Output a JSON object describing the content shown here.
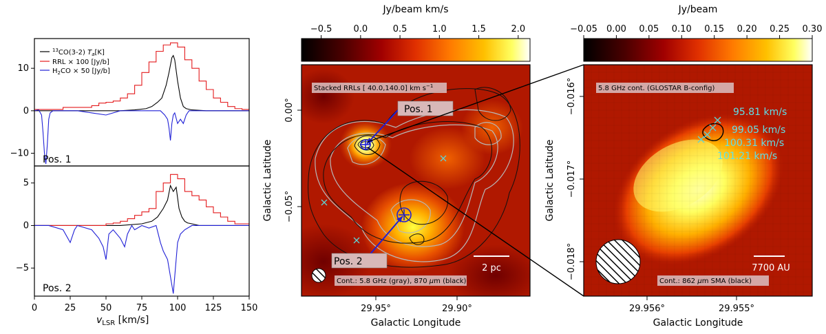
{
  "chart_data": [
    {
      "type": "line",
      "panel": "spectrum-position-1",
      "label": "Pos. 1",
      "x_range": [
        0,
        150
      ],
      "ylim": [
        -13,
        17
      ],
      "y_ticks": [
        -10,
        0,
        10
      ],
      "legend": [
        "$^{13}$CO(3-2) $T_a$[K]",
        "RRL × 100 [Jy/b]",
        "H$_2$CO × 50 [Jy/b]"
      ],
      "legend_text": {
        "co_sup": "13",
        "co_main": "CO(3-2) ",
        "co_ta": "T",
        "co_ta_sub": "a",
        "co_unit": "[K]",
        "rrl": "RRL × 100 [Jy/b]",
        "h2co_a": "H",
        "h2co_sub": "2",
        "h2co_b": "CO × 50 [Jy/b]"
      },
      "series": [
        {
          "name": "13CO(3-2) Ta",
          "color": "#000000",
          "x": [
            0,
            10,
            20,
            30,
            40,
            50,
            60,
            70,
            78,
            82,
            86,
            89,
            92,
            94,
            96,
            97,
            98,
            100,
            102,
            104,
            106,
            110,
            120,
            130,
            140,
            150
          ],
          "y": [
            0,
            0,
            0,
            0,
            0,
            0,
            0,
            0.2,
            0.5,
            1,
            2,
            3,
            6,
            9,
            12.5,
            13,
            12,
            7,
            3,
            1,
            0.5,
            0.2,
            0,
            0,
            0,
            0
          ]
        },
        {
          "name": "RRL x 100",
          "color": "#e41a1c",
          "steps": true,
          "x": [
            0,
            10,
            20,
            30,
            40,
            45,
            50,
            55,
            60,
            65,
            70,
            75,
            80,
            85,
            90,
            95,
            100,
            105,
            110,
            115,
            120,
            125,
            130,
            135,
            140,
            145,
            150
          ],
          "y": [
            0.3,
            0.3,
            0.8,
            0.8,
            1.2,
            1.8,
            2,
            2.3,
            3,
            4,
            6,
            9,
            11.5,
            14,
            15.5,
            16,
            15,
            12,
            10,
            7,
            5,
            3,
            2,
            1,
            0.5,
            0.3,
            0.2
          ]
        },
        {
          "name": "H2CO x 50",
          "color": "#1f1fd6",
          "x": [
            0,
            3,
            5,
            6,
            7,
            8,
            9,
            10,
            11,
            13,
            16,
            20,
            30,
            40,
            50,
            60,
            70,
            80,
            88,
            91,
            93,
            94,
            95,
            96,
            97,
            98,
            100,
            102,
            104,
            106,
            108,
            110,
            115,
            120,
            130,
            140,
            150
          ],
          "y": [
            0,
            0.2,
            -1,
            -5,
            -10,
            -12.5,
            -8,
            -2,
            -0.5,
            0,
            0,
            0,
            0,
            -0.5,
            -1,
            0,
            0,
            0,
            0,
            -1,
            -2,
            -4,
            -7,
            -3,
            -1,
            -0.5,
            -3,
            -2,
            -3,
            -1,
            0,
            0,
            0,
            0,
            0,
            0,
            0
          ]
        }
      ]
    },
    {
      "type": "line",
      "panel": "spectrum-position-2",
      "label": "Pos. 2",
      "x_range": [
        0,
        150
      ],
      "ylim": [
        -8.3,
        7
      ],
      "y_ticks": [
        -5,
        0,
        5
      ],
      "x_ticks": [
        0,
        25,
        50,
        75,
        100,
        125,
        150
      ],
      "xlabel_main": "v",
      "xlabel_sub": "LSR",
      "xlabel_unit": " [km/s]",
      "series": [
        {
          "name": "13CO(3-2) Ta",
          "color": "#000000",
          "x": [
            0,
            20,
            40,
            60,
            75,
            82,
            86,
            90,
            93,
            95,
            97,
            99,
            101,
            103,
            105,
            107,
            110,
            115,
            120,
            130,
            140,
            150
          ],
          "y": [
            0,
            0,
            0,
            0,
            0.2,
            0.5,
            1,
            2,
            3,
            4.7,
            4,
            4.5,
            2,
            1,
            0.5,
            0.3,
            0.2,
            0,
            0,
            0,
            0,
            0
          ]
        },
        {
          "name": "RRL x 100",
          "color": "#e41a1c",
          "steps": true,
          "x": [
            0,
            10,
            20,
            30,
            40,
            50,
            55,
            60,
            65,
            70,
            75,
            80,
            85,
            90,
            95,
            100,
            105,
            110,
            115,
            120,
            125,
            130,
            135,
            140,
            150
          ],
          "y": [
            0,
            0,
            0,
            0,
            0,
            0.2,
            0.3,
            0.5,
            0.8,
            1.2,
            1.6,
            2,
            4,
            5,
            6,
            5.5,
            4,
            3.5,
            3,
            2.2,
            1.5,
            1,
            0.5,
            0.2,
            0
          ]
        },
        {
          "name": "H2CO x 50",
          "color": "#1f1fd6",
          "x": [
            0,
            10,
            20,
            25,
            28,
            30,
            40,
            45,
            48,
            50,
            52,
            55,
            60,
            63,
            65,
            68,
            70,
            75,
            80,
            85,
            88,
            90,
            93,
            95,
            96,
            97,
            98,
            99,
            100,
            102,
            105,
            110,
            120,
            130,
            150
          ],
          "y": [
            0,
            0,
            -0.5,
            -2,
            -0.5,
            0,
            -0.5,
            -1.5,
            -2.5,
            -4,
            -1,
            -0.5,
            -1.5,
            -2.5,
            -1,
            0,
            -0.5,
            0,
            -0.3,
            0,
            -2,
            -3,
            -4,
            -6,
            -7,
            -8,
            -6,
            -4,
            -2,
            -1,
            -0.5,
            0,
            0,
            0,
            0
          ]
        }
      ]
    },
    {
      "type": "heatmap",
      "panel": "stacked-rrl-map",
      "colorbar_label": "Jy/beam km/s",
      "colorbar_ticks": [
        "−0.5",
        "0.0",
        "0.5",
        "1.0",
        "1.5",
        "2.0"
      ],
      "colorbar_range": [
        -0.75,
        2.15
      ],
      "x_ticks": [
        "29.95°",
        "29.90°"
      ],
      "y_ticks": [
        "−0.05°",
        "0.00°"
      ],
      "xlabel": "Galactic Longitude",
      "ylabel": "Galactic Latitude",
      "title_box": "Stacked RRLs [ 40.0,140.0] km s",
      "title_sup": "−1",
      "footnote_a": "Cont.: 5.8 GHz (gray), 870 ",
      "footnote_mu": "μ",
      "footnote_b": "m (black)",
      "scale_bar": "2 pc",
      "markers": [
        "Pos. 1",
        "Pos. 2"
      ]
    },
    {
      "type": "heatmap",
      "panel": "glostar-zoom-map",
      "colorbar_label": "Jy/beam",
      "colorbar_ticks": [
        "−0.05",
        "0.00",
        "0.05",
        "0.10",
        "0.15",
        "0.20",
        "0.25",
        "0.30"
      ],
      "colorbar_range": [
        -0.05,
        0.3
      ],
      "x_ticks": [
        "29.956°",
        "29.955°"
      ],
      "y_ticks": [
        "−0.018°",
        "−0.017°",
        "−0.016°"
      ],
      "xlabel": "Galactic Longitude",
      "ylabel": "Galactic Latitude",
      "title_box": "5.8 GHz cont. (GLOSTAR B-config)",
      "footnote_a": "Cont.: 862 ",
      "footnote_mu": "μ",
      "footnote_b": "m SMA (black)",
      "scale_bar": "7700 AU",
      "maser_velocities": [
        "95.81 km/s",
        "99.05 km/s",
        "100.31 km/s",
        "101.21 km/s"
      ]
    }
  ]
}
